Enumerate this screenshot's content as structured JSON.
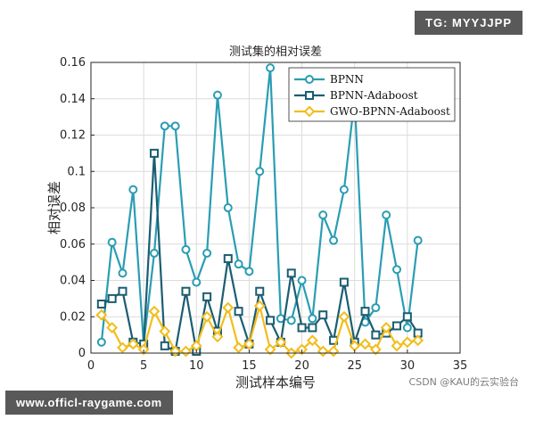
{
  "chart_data": {
    "type": "line",
    "title": "测试集的相对误差",
    "xlabel": "测试样本编号",
    "ylabel": "相对误差",
    "xlim": [
      0,
      35
    ],
    "ylim": [
      0,
      0.16
    ],
    "xticks": [
      "0",
      "5",
      "10",
      "15",
      "20",
      "25",
      "30",
      "35"
    ],
    "yticks": [
      "0",
      "0.02",
      "0.04",
      "0.06",
      "0.08",
      "0.1",
      "0.12",
      "0.14",
      "0.16"
    ],
    "grid": true,
    "legend_position": "top-right",
    "x": [
      1,
      2,
      3,
      4,
      5,
      6,
      7,
      8,
      9,
      10,
      11,
      12,
      13,
      14,
      15,
      16,
      17,
      18,
      19,
      20,
      21,
      22,
      23,
      24,
      25,
      26,
      27,
      28,
      29,
      30,
      31
    ],
    "series": [
      {
        "name": "BPNN",
        "color": "#2a9db3",
        "marker": "circle",
        "values": [
          0.006,
          0.061,
          0.044,
          0.09,
          0.005,
          0.055,
          0.125,
          0.125,
          0.057,
          0.039,
          0.055,
          0.142,
          0.08,
          0.049,
          0.045,
          0.1,
          0.157,
          0.019,
          0.018,
          0.04,
          0.019,
          0.076,
          0.062,
          0.09,
          0.14,
          0.017,
          0.025,
          0.076,
          0.046,
          0.014,
          0.062
        ]
      },
      {
        "name": "BPNN-Adaboost",
        "color": "#1b5d72",
        "marker": "square",
        "values": [
          0.027,
          0.03,
          0.034,
          0.006,
          0.005,
          0.11,
          0.004,
          0.001,
          0.034,
          0.001,
          0.031,
          0.012,
          0.052,
          0.023,
          0.005,
          0.034,
          0.018,
          0.006,
          0.044,
          0.014,
          0.014,
          0.021,
          0.007,
          0.039,
          0.006,
          0.023,
          0.01,
          0.011,
          0.015,
          0.02,
          0.011
        ]
      },
      {
        "name": "GWO-BPNN-Adaboost",
        "color": "#f2bd1a",
        "marker": "diamond",
        "values": [
          0.021,
          0.014,
          0.003,
          0.005,
          0.002,
          0.023,
          0.012,
          0.001,
          0.001,
          0.004,
          0.02,
          0.009,
          0.025,
          0.003,
          0.005,
          0.026,
          0.002,
          0.006,
          0.0,
          0.002,
          0.007,
          0.001,
          0.001,
          0.02,
          0.004,
          0.005,
          0.002,
          0.014,
          0.004,
          0.006,
          0.007
        ]
      }
    ]
  },
  "overlays": {
    "tag_top": "TG: MYYJJPP",
    "tag_bottom": "www.officl-raygame.com",
    "watermark": "CSDN @KAU的云实验台"
  }
}
